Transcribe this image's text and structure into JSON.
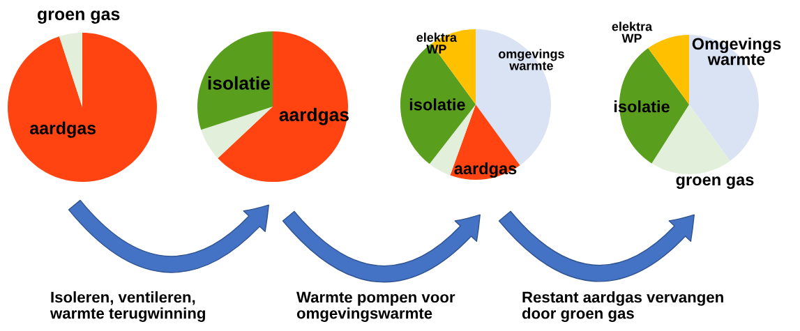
{
  "chart_data": [
    {
      "type": "pie",
      "categories": [
        "aardgas",
        "groen gas"
      ],
      "values": [
        95,
        5
      ],
      "colors": [
        "#ff4411",
        "#e2efda"
      ]
    },
    {
      "type": "pie",
      "categories": [
        "aardgas",
        null,
        "isolatie"
      ],
      "values": [
        63,
        7,
        30
      ],
      "colors": [
        "#ff4411",
        "#e2efda",
        "#5a9e1e"
      ],
      "annotations": [
        "Isoleren, ventileren,\nwarmte terugwinning"
      ]
    },
    {
      "type": "pie",
      "categories": [
        "omgevings\nwarmte",
        "aardgas",
        null,
        "isolatie",
        "elektra\nWP"
      ],
      "values": [
        40,
        15.5,
        5,
        29.5,
        10
      ],
      "colors": [
        "#dae3f3",
        "#ff4411",
        "#e2efda",
        "#5a9e1e",
        "#ffc000"
      ],
      "annotations": [
        "Warmte pompen voor\nomgevingswarmte"
      ]
    },
    {
      "type": "pie",
      "categories": [
        "Omgevings\nwarmte",
        "groen gas",
        "isolatie",
        "elektra\nWP"
      ],
      "values": [
        40,
        19,
        31,
        10
      ],
      "colors": [
        "#dae3f3",
        "#e2efda",
        "#5a9e1e",
        "#ffc000"
      ],
      "annotations": [
        "Restant aardgas vervangen\ndoor groen gas"
      ]
    }
  ]
}
